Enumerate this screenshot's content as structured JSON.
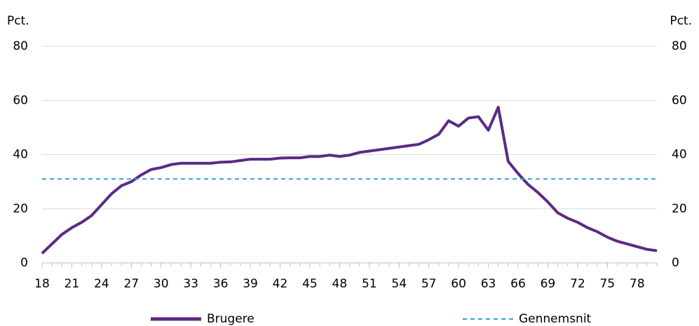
{
  "chart_data": {
    "type": "line",
    "y_label": "Pct.",
    "y2_label": "Pct.",
    "x": [
      18,
      19,
      20,
      21,
      22,
      23,
      24,
      25,
      26,
      27,
      28,
      29,
      30,
      31,
      32,
      33,
      34,
      35,
      36,
      37,
      38,
      39,
      40,
      41,
      42,
      43,
      44,
      45,
      46,
      47,
      48,
      49,
      50,
      51,
      52,
      53,
      54,
      55,
      56,
      57,
      58,
      59,
      60,
      61,
      62,
      63,
      64,
      65,
      66,
      67,
      68,
      69,
      70,
      71,
      72,
      73,
      74,
      75,
      76,
      77,
      78,
      79,
      80
    ],
    "xlim": [
      18,
      80
    ],
    "xticks": [
      18,
      21,
      24,
      27,
      30,
      33,
      36,
      39,
      42,
      45,
      48,
      51,
      54,
      57,
      60,
      63,
      66,
      69,
      72,
      75,
      78
    ],
    "ylim": [
      0,
      80
    ],
    "yticks": [
      0,
      20,
      40,
      60,
      80
    ],
    "y2lim": [
      0,
      80
    ],
    "y2ticks": [
      0,
      20,
      40,
      60,
      80
    ],
    "grid": true,
    "legend": "bottom",
    "series": [
      {
        "name": "Brugere",
        "color": "#5b2a86",
        "values": [
          3.5,
          7,
          10.5,
          13,
          15,
          17.5,
          21.5,
          25.5,
          28.5,
          30,
          32.5,
          34.5,
          35.2,
          36.3,
          36.8,
          36.8,
          36.8,
          36.8,
          37.2,
          37.3,
          37.8,
          38.3,
          38.3,
          38.3,
          38.7,
          38.8,
          38.8,
          39.3,
          39.3,
          39.8,
          39.3,
          39.8,
          40.8,
          41.3,
          41.8,
          42.3,
          42.8,
          43.3,
          43.8,
          45.5,
          47.5,
          52.5,
          50.5,
          53.5,
          54,
          49,
          57.5,
          37.5,
          33,
          29,
          26,
          22.5,
          18.5,
          16.5,
          15,
          13,
          11.5,
          9.5,
          8,
          7,
          6,
          5,
          4.5
        ]
      },
      {
        "name": "Gennemsnit",
        "color": "#2ea3d6",
        "dashed": true,
        "value": 31
      }
    ]
  }
}
